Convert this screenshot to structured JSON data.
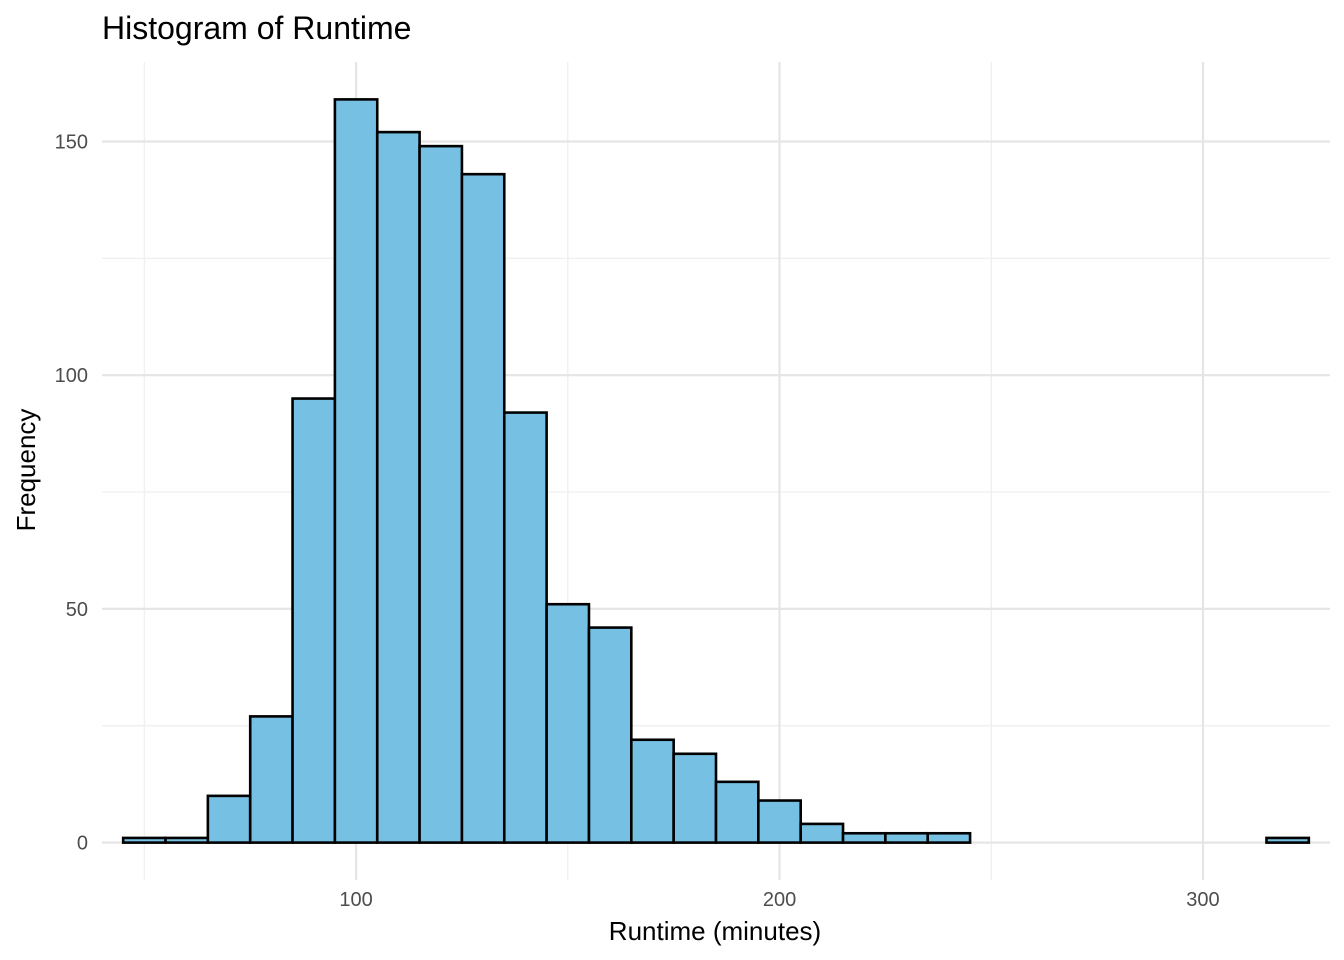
{
  "chart_data": {
    "type": "bar",
    "title": "Histogram of Runtime",
    "xlabel": "Runtime (minutes)",
    "ylabel": "Frequency",
    "bin_width": 10,
    "bin_starts": [
      45,
      55,
      65,
      75,
      85,
      95,
      105,
      115,
      125,
      135,
      145,
      155,
      165,
      175,
      185,
      195,
      205,
      215,
      225,
      235,
      245,
      255,
      265,
      275,
      285,
      295,
      305,
      315
    ],
    "values": [
      1,
      1,
      10,
      27,
      95,
      159,
      152,
      149,
      143,
      92,
      51,
      46,
      22,
      19,
      13,
      9,
      4,
      2,
      2,
      2,
      0,
      0,
      0,
      0,
      0,
      0,
      0,
      1
    ],
    "xlim": [
      40,
      330
    ],
    "ylim": [
      -8,
      167
    ],
    "x_ticks": [
      100,
      200,
      300
    ],
    "x_tick_labels": [
      "100",
      "200",
      "300"
    ],
    "y_ticks": [
      0,
      50,
      100,
      150
    ],
    "y_tick_labels": [
      "0",
      "50",
      "100",
      "150"
    ],
    "grid": true,
    "bar_color": "#76c1e3",
    "bar_outline_color": "#000000"
  }
}
